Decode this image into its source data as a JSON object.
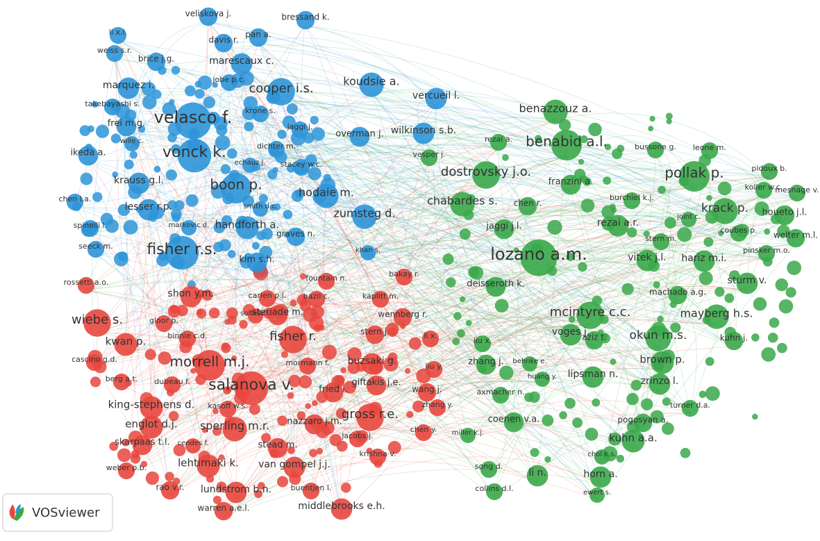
{
  "logo": "VOSviewer",
  "clusters": [
    {
      "color": "#2e95d8",
      "nodes": [
        "veliskova j.",
        "bressand k.",
        "li x.l.",
        "pan a.",
        "davis r.",
        "weiss s.r.",
        "brice j.g.",
        "marescaux c.",
        "jobe p.c.",
        "marquez i.",
        "cooper i.s.",
        "koudsie a.",
        "takebayashi s.",
        "vercueil l.",
        "krone s.",
        "velasco f.",
        "frei m.g.",
        "jaggi j.",
        "overman j.",
        "wilkinson s.b.",
        "wille c.",
        "ikeda a.",
        "dichter m.",
        "echauz j.",
        "stacey w.c.",
        "vonck k.",
        "krauss g.l.",
        "boon p.",
        "hodaie m.",
        "chen i.a.",
        "lesser r.p.",
        "smith d.c.",
        "zumsteg d.",
        "spinelli l.",
        "markovic d.",
        "handforth a.",
        "graves n.",
        "seeck m.",
        "fisher r.s.",
        "khan s.",
        "kim s.h."
      ]
    },
    {
      "color": "#e8473e",
      "nodes": [
        "rossetti a.o.",
        "fountain n.",
        "bakay r.",
        "shon y.m.",
        "carlen p.l.",
        "bazil c.",
        "kaplitt m.",
        "soltesz i.",
        "steriade m.",
        "wennberg r.",
        "wiebe s.",
        "gloor p.",
        "fisher r.",
        "stern j.",
        "li x.",
        "binnie c.d.",
        "kwan p.",
        "cascino g.d.",
        "morrell m.j.",
        "mormann f.",
        "buzsaki g.",
        "liu y.",
        "berg a.t.",
        "dubeau f.",
        "salanova v.",
        "fried i.",
        "giftakis j.e.",
        "wang j.",
        "king-stephens d.",
        "kasoff w.s.",
        "zhang y.",
        "englot d.j.",
        "sperling m.r.",
        "nazzaro j.m.",
        "gross r.e.",
        "skarpaas t.l.",
        "cendes f.",
        "stead m.",
        "jacobs j.",
        "chen y.",
        "lehtimaki k.",
        "van gompel j.j.",
        "krishna v.",
        "weber p.b.",
        "rao v.r.",
        "lundstrom b.n.",
        "buentjen l.",
        "warren a.e.l.",
        "middlebrooks e.h."
      ]
    },
    {
      "color": "#3aa84a",
      "nodes": [
        "benazzouz a.",
        "rezai a.",
        "benabid a.l.",
        "bussone g.",
        "leone m.",
        "vesper j.",
        "dostrovsky j.o.",
        "pollak p.",
        "pidoux b.",
        "franzini a.",
        "koller w.c.",
        "mesnage v.",
        "chabardes s.",
        "chen r.",
        "burchiel k.j.",
        "krack p.",
        "houeto j.l.",
        "rezai a.r.",
        "joint c.",
        "coubes p.",
        "welter m.l.",
        "jaggi j.l.",
        "lozano a.m.",
        "stern m.",
        "pinsker m.o.",
        "vitek j.l.",
        "hariz m.i.",
        "deisseroth k.",
        "sturm v.",
        "machado a.g.",
        "mcintyre c.c.",
        "mayberg h.s.",
        "voges j.",
        "aziz t.",
        "okun m.s.",
        "kuhn j.",
        "liu x.",
        "brown p.",
        "zhang j.",
        "behnke e.",
        "huang y.",
        "lipsman n.",
        "zrinzo l.",
        "axmacher n.",
        "turner d.a.",
        "coenen v.a.",
        "pogosyan a.",
        "miller k.j.",
        "kuhn a.a.",
        "chol k.s.",
        "song d.",
        "li n.",
        "horn a.",
        "collins d.l.",
        "ewert s."
      ]
    }
  ]
}
